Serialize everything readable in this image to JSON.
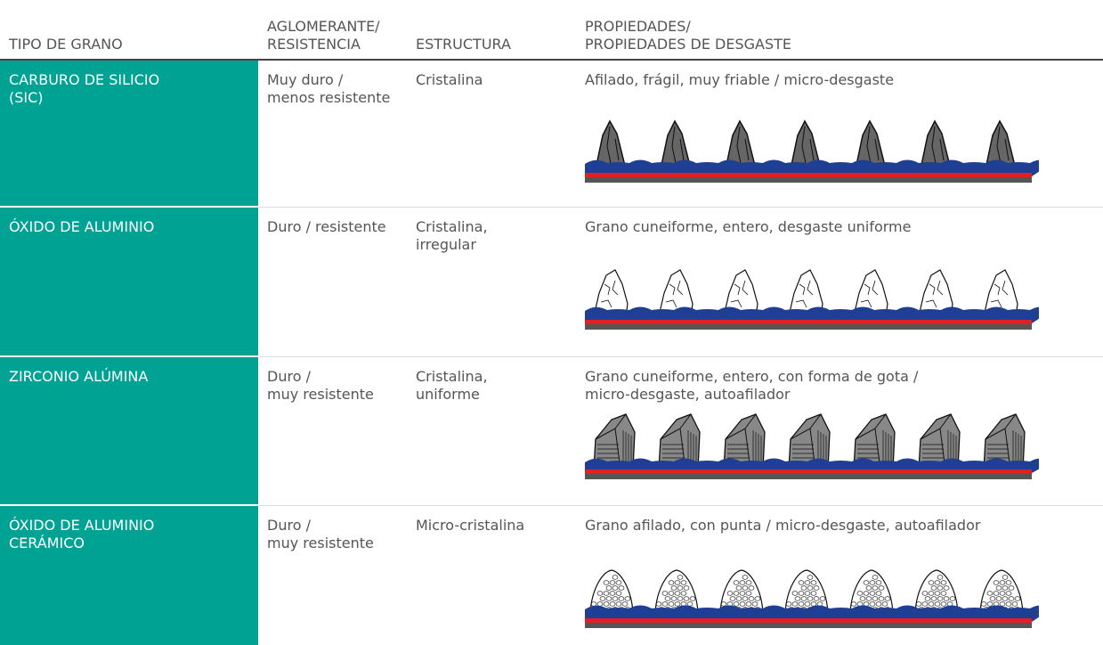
{
  "header": {
    "columns": [
      "TIPO DE GRANO",
      "AGLOMERANTE/\nRESISTENCIA",
      "ESTRUCTURA",
      "PROPIEDADES/\nPROPIEDADES DE DESGASTE"
    ]
  },
  "table": {
    "rows": [
      [
        "CARBURO DE SILICIO\n(SIC)",
        "Muy duro /\nmenos resistente",
        "Cristalina",
        "Afilado, frágil, muy friable / micro-desgaste"
      ],
      [
        "ÓXIDO DE ALUMINIO",
        "Duro / resistente",
        "Cristalina,\nirregular",
        "Grano cuneiforme, entero, desgaste uniforme"
      ],
      [
        "ZIRCONIO ALÚMINA",
        "Duro /\nmuy resistente",
        "Cristalina,\nuniforme",
        "Grano cuneiforme, entero, con forma de gota /\nmicro-desgaste, autoafilador"
      ],
      [
        "ÓXIDO DE ALUMINIO\nCERÁMICO",
        "Duro /\nmuy resistente",
        "Micro-cristalina",
        "Grano afilado, con punta / micro-desgaste, autoafilador"
      ]
    ]
  }
}
